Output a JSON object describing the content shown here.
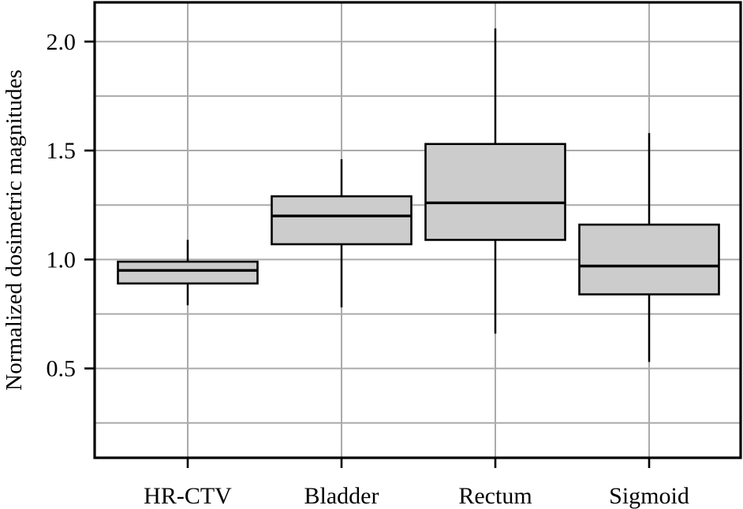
{
  "figure": {
    "background": "#ffffff"
  },
  "chart_data": {
    "type": "boxplot",
    "title": "",
    "xlabel": "",
    "ylabel": "Normalized dosimetric magnitudes",
    "categories": [
      "HR-CTV",
      "Bladder",
      "Rectum",
      "Sigmoid"
    ],
    "series": [
      {
        "name": "HR-CTV",
        "whisker_low": 0.79,
        "q1": 0.89,
        "median": 0.95,
        "q3": 0.99,
        "whisker_high": 1.09
      },
      {
        "name": "Bladder",
        "whisker_low": 0.78,
        "q1": 1.07,
        "median": 1.2,
        "q3": 1.29,
        "whisker_high": 1.46
      },
      {
        "name": "Rectum",
        "whisker_low": 0.66,
        "q1": 1.09,
        "median": 1.26,
        "q3": 1.53,
        "whisker_high": 2.06
      },
      {
        "name": "Sigmoid",
        "whisker_low": 0.53,
        "q1": 0.84,
        "median": 0.97,
        "q3": 1.16,
        "whisker_high": 1.58
      }
    ],
    "outliers": [],
    "ylim": [
      0.09,
      2.18
    ],
    "yticks": [
      {
        "value": 0.5,
        "label": "0.5"
      },
      {
        "value": 1.0,
        "label": "1.0"
      },
      {
        "value": 1.5,
        "label": "1.5"
      },
      {
        "value": 2.0,
        "label": "2.0"
      }
    ],
    "grid_values_y": [
      0.25,
      0.5,
      0.75,
      1.0,
      1.25,
      1.5,
      1.75,
      2.0
    ],
    "grid": "both",
    "legend": "none",
    "whisker_caps": false,
    "colors": {
      "box_fill": "#cccccc",
      "box_edge": "#000000",
      "median": "#000000",
      "whisker": "#000000",
      "grid": "#aaaaaa",
      "axis": "#000000",
      "text": "#000000"
    }
  }
}
